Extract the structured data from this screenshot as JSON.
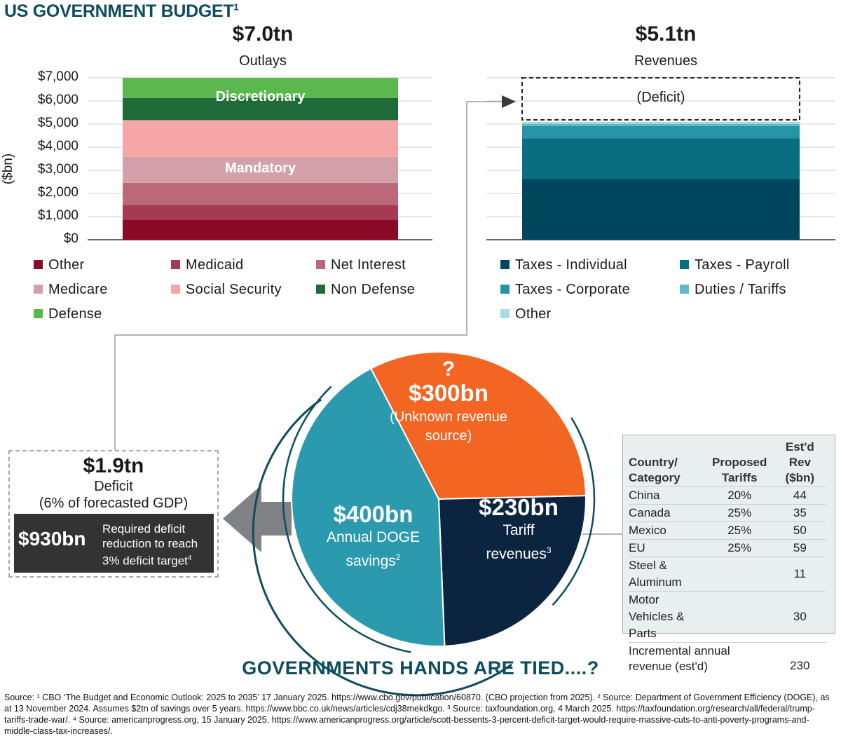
{
  "title": "US GOVERNMENT BUDGET",
  "title_note": "1",
  "outlays": {
    "total": "$7.0tn",
    "label": "Outlays"
  },
  "revenues": {
    "total": "$5.1tn",
    "label": "Revenues"
  },
  "y_axis_label": "($bn)",
  "chart_data": [
    {
      "type": "bar",
      "stacked": true,
      "categories": [
        "Outlays"
      ],
      "ylabel": "($bn)",
      "ylim": [
        0,
        7000
      ],
      "yticks": [
        "$0",
        "$1,000",
        "$2,000",
        "$3,000",
        "$4,000",
        "$5,000",
        "$6,000",
        "$7,000"
      ],
      "series": [
        {
          "name": "Other",
          "values": [
            870
          ],
          "color": "#8b0a27"
        },
        {
          "name": "Medicaid",
          "values": [
            640
          ],
          "color": "#a63a52"
        },
        {
          "name": "Net Interest",
          "values": [
            950
          ],
          "color": "#bb6878"
        },
        {
          "name": "Medicare",
          "values": [
            1120
          ],
          "color": "#d3a0a9"
        },
        {
          "name": "Social Security",
          "values": [
            1590
          ],
          "color": "#f5a7a7"
        },
        {
          "name": "Non Defense",
          "values": [
            960
          ],
          "color": "#1f6b3a"
        },
        {
          "name": "Defense",
          "values": [
            870
          ],
          "color": "#5bb84e"
        }
      ],
      "annotations": [
        "Discretionary",
        "Mandatory"
      ]
    },
    {
      "type": "bar",
      "stacked": true,
      "categories": [
        "Revenues"
      ],
      "ylim": [
        0,
        7000
      ],
      "series": [
        {
          "name": "Taxes - Individual",
          "values": [
            2620
          ],
          "color": "#00475e"
        },
        {
          "name": "Taxes - Payroll",
          "values": [
            1770
          ],
          "color": "#0a6d80"
        },
        {
          "name": "Taxes - Corporate",
          "values": [
            530
          ],
          "color": "#2695a8"
        },
        {
          "name": "Duties / Tariffs",
          "values": [
            90
          ],
          "color": "#5fbac6"
        },
        {
          "name": "Other",
          "values": [
            80
          ],
          "color": "#a6dde3"
        }
      ],
      "annotations": [
        "(Deficit)"
      ],
      "deficit_top": 7000
    },
    {
      "type": "pie",
      "categories": [
        "$300bn",
        "$230bn",
        "$400bn"
      ],
      "values": [
        300,
        230,
        400
      ],
      "colors": [
        "#f26522",
        "#0b2541",
        "#2c9aae"
      ]
    }
  ],
  "pie_labels": {
    "unknown": {
      "mark": "?",
      "value": "$300bn",
      "desc1": "(Unknown revenue",
      "desc2": "source)"
    },
    "tariff": {
      "value": "$230bn",
      "desc1": "Tariff",
      "desc2": "revenues",
      "note": "3"
    },
    "doge": {
      "value": "$400bn",
      "desc1": "Annual DOGE",
      "desc2": "savings",
      "note": "2"
    }
  },
  "deficit": {
    "value": "$1.9tn",
    "label": "Deficit",
    "detail": "(6% of forecasted GDP)",
    "required_value": "$930bn",
    "required_line1": "Required deficit",
    "required_line2": "reduction to reach",
    "required_line3": "3% deficit target",
    "required_note": "4"
  },
  "tariff_table": {
    "headers": [
      "Country/ Category",
      "Proposed Tariffs",
      "Est'd Rev ($bn)"
    ],
    "header_lines": [
      [
        "Country/",
        "Category"
      ],
      [
        "Proposed",
        "Tariffs"
      ],
      [
        "Est'd",
        "Rev",
        "($bn)"
      ]
    ],
    "rows": [
      [
        "China",
        "20%",
        "44"
      ],
      [
        "Canada",
        "25%",
        "35"
      ],
      [
        "Mexico",
        "25%",
        "50"
      ],
      [
        "EU",
        "25%",
        "59"
      ],
      [
        "Steel & Aluminum",
        "",
        "11"
      ],
      [
        "Motor Vehicles & Parts",
        "",
        "30"
      ]
    ],
    "total_label1": "Incremental annual",
    "total_label2": "revenue (est'd)",
    "total_value": "230"
  },
  "tagline": "GOVERNMENTS HANDS ARE TIED....?",
  "source": "Source: ¹ CBO ‘The Budget and Economic Outlook: 2025 to 2035’ 17 January 2025. https://www.cbo.gov/publication/60870. (CBO projection from 2025). ² Source: Department of Government Efficiency (DOGE), as at 13 November 2024. Assumes $2tn of savings over 5 years. https://www.bbc.co.uk/news/articles/cdj38mekdkgo. ³ Source: taxfoundation.org, 4 March 2025. https://taxfoundation.org/research/all/federal/trump-tariffs-trade-war/. ⁴ Source: americanprogress.org, 15 January 2025. https://www.americanprogress.org/article/scott-bessents-3-percent-deficit-target-would-require-massive-cuts-to-anti-poverty-programs-and-middle-class-tax-increases/."
}
